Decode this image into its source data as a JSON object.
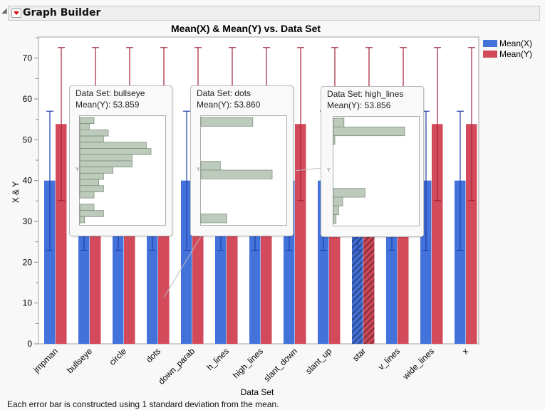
{
  "header": {
    "title": "Graph Builder"
  },
  "footer": "Each error bar is constructed using 1 standard deviation from the mean.",
  "colors": {
    "mean_x": "#4472db",
    "mean_y": "#d34b5b",
    "err_x": "#1e3fa8",
    "err_y": "#a3223a",
    "hist": "#bccbbb"
  },
  "chart_data": {
    "type": "bar",
    "title": "Mean(X) & Mean(Y) vs. Data Set",
    "xlabel": "Data Set",
    "ylabel": "X & Y",
    "ylim": [
      0,
      75
    ],
    "yticks": [
      0,
      10,
      20,
      30,
      40,
      50,
      60,
      70
    ],
    "legend_position": "right",
    "categories": [
      "jmpman",
      "bullseye",
      "circle",
      "dots",
      "down_parab",
      "h_lines",
      "high_lines",
      "slant_down",
      "slant_up",
      "star",
      "v_lines",
      "wide_lines",
      "x"
    ],
    "highlighted": "star",
    "error_bars": "1 standard deviation",
    "series": [
      {
        "name": "Mean(X)",
        "values": [
          40,
          40,
          40,
          40,
          40,
          40,
          40,
          40,
          40,
          40,
          40,
          40,
          40
        ],
        "err_low": [
          22.9,
          22.9,
          22.9,
          22.9,
          22.9,
          22.9,
          22.9,
          22.9,
          22.9,
          22.9,
          22.9,
          22.9,
          22.9
        ],
        "err_high": [
          57.0,
          57.0,
          57.0,
          57.0,
          57.0,
          57.0,
          57.0,
          57.0,
          57.0,
          57.0,
          57.0,
          57.0,
          57.0
        ]
      },
      {
        "name": "Mean(Y)",
        "values": [
          53.86,
          53.86,
          53.86,
          53.86,
          53.86,
          53.86,
          53.86,
          53.86,
          53.86,
          53.86,
          53.86,
          53.86,
          53.86
        ],
        "err_low": [
          35.1,
          35.1,
          35.1,
          35.1,
          35.1,
          35.1,
          35.1,
          35.1,
          35.1,
          35.1,
          35.1,
          35.1,
          35.1
        ],
        "err_high": [
          72.6,
          72.6,
          72.6,
          72.6,
          72.6,
          72.6,
          72.6,
          72.6,
          72.6,
          72.6,
          72.6,
          72.6,
          72.6
        ]
      }
    ]
  },
  "tooltips": [
    {
      "line1": "Data Set: bullseye",
      "line2": "Mean(Y): 53.859",
      "axis": "Y",
      "hist": [
        3,
        2,
        6,
        5,
        14,
        15,
        11,
        11,
        7,
        5,
        4,
        5,
        3,
        0,
        3,
        5,
        1
      ]
    },
    {
      "line1": "Data Set: dots",
      "line2": "Mean(Y): 53.860",
      "axis": "Y",
      "hist": [
        8,
        0,
        0,
        0,
        0,
        3,
        11,
        0,
        0,
        0,
        0,
        4
      ]
    },
    {
      "line1": "Data Set: high_lines",
      "line2": "Mean(Y): 53.856",
      "axis": "Y",
      "hist": [
        4,
        27,
        0.5,
        0,
        0,
        0,
        0,
        0,
        12,
        3.5,
        2,
        1
      ]
    }
  ]
}
